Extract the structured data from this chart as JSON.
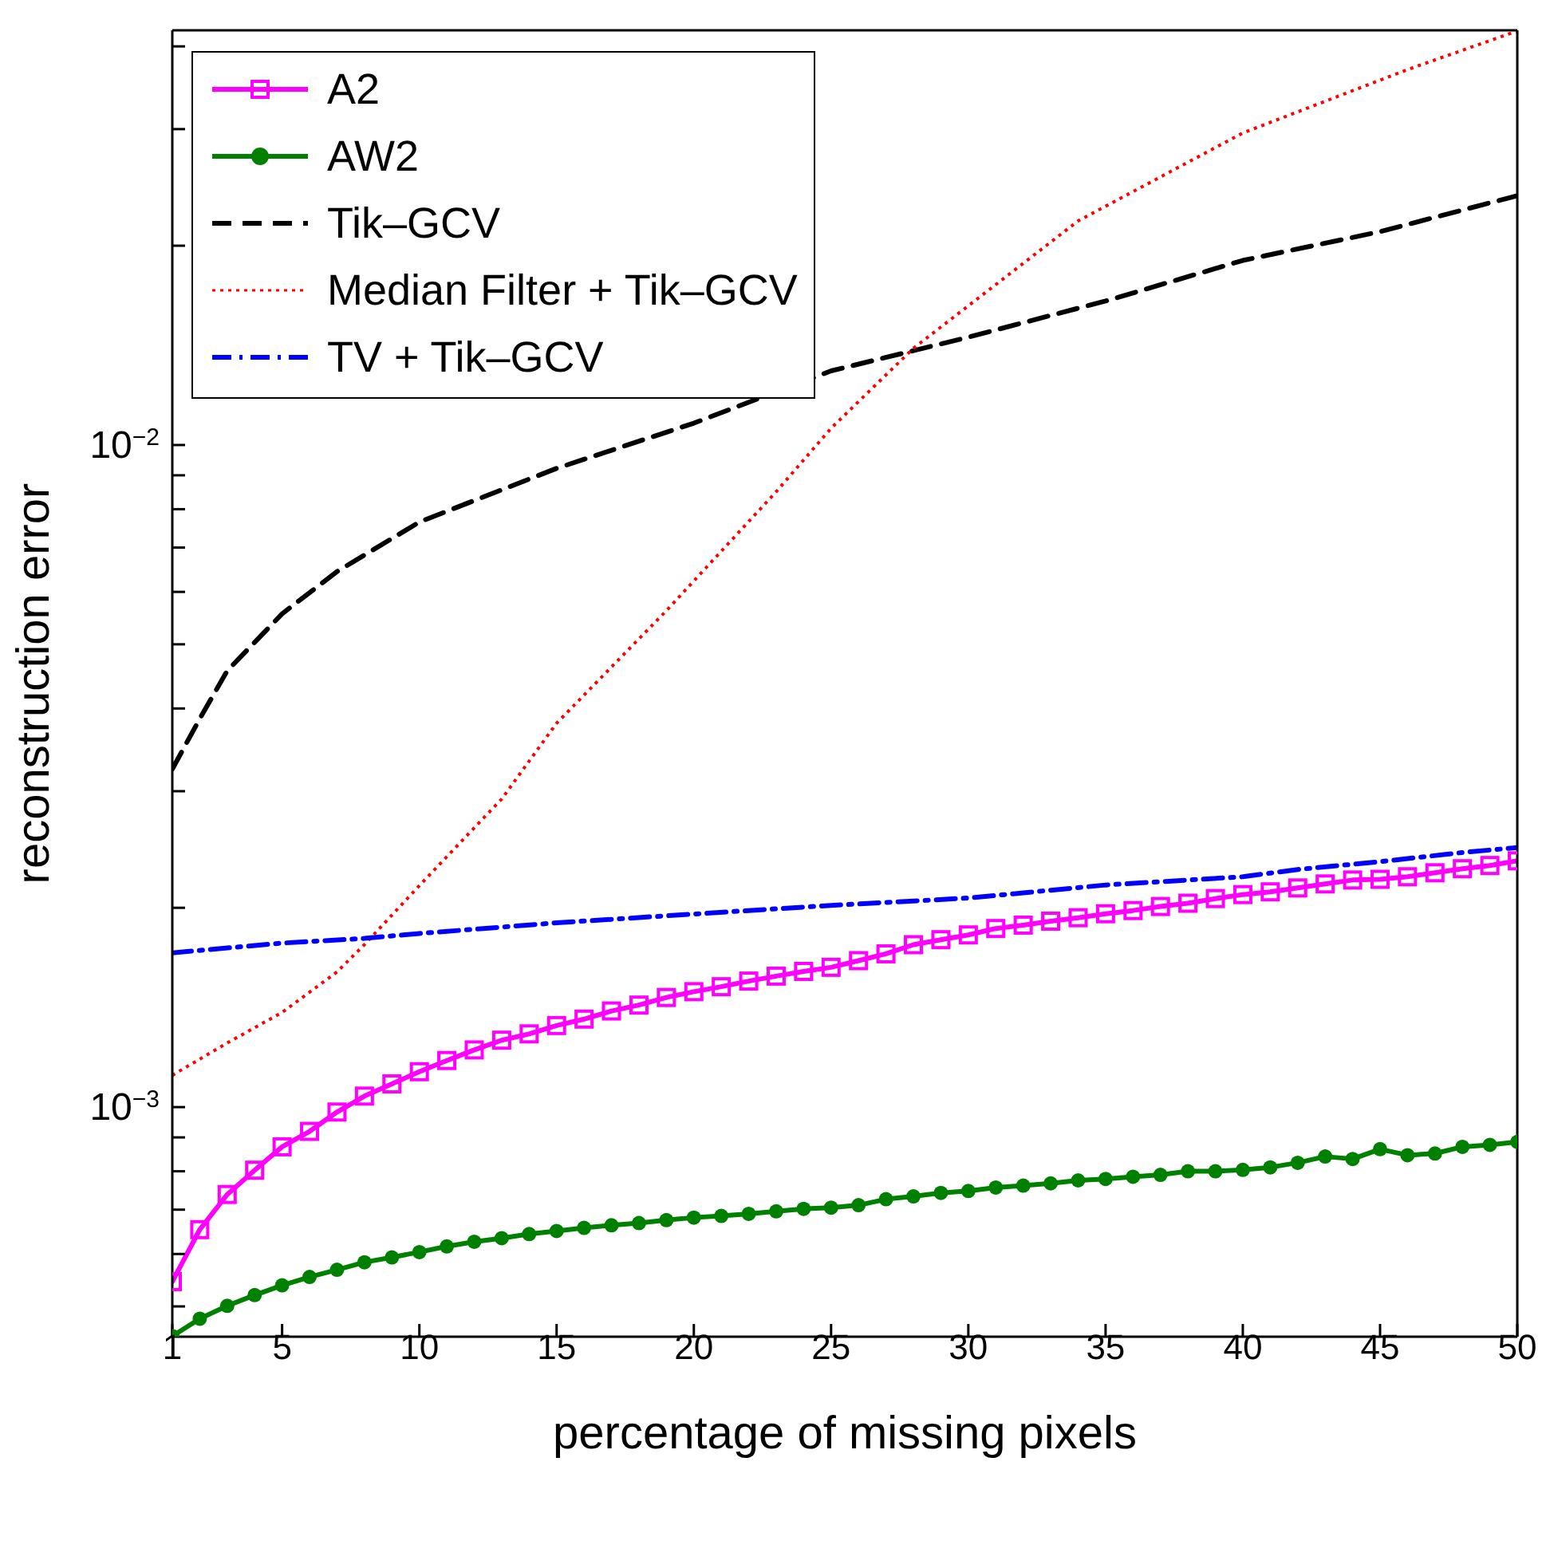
{
  "chart_data": {
    "type": "line",
    "xlabel": "percentage of missing pixels",
    "ylabel": "reconstruction error",
    "log": "y",
    "legend": "top left",
    "xlim": [
      1,
      50
    ],
    "xticks": [
      1,
      5,
      10,
      15,
      20,
      25,
      30,
      35,
      40,
      45,
      50
    ],
    "ylim": [
      0.00045,
      0.0423
    ],
    "yticks": [
      {
        "value": 0.0005,
        "label": null
      },
      {
        "value": 0.0006,
        "label": null
      },
      {
        "value": 0.0007,
        "label": null
      },
      {
        "value": 0.0008,
        "label": null
      },
      {
        "value": 0.0009,
        "label": null
      },
      {
        "value": 0.001,
        "label": "10$^{−3}$"
      },
      {
        "value": 0.002,
        "label": null
      },
      {
        "value": 0.003,
        "label": null
      },
      {
        "value": 0.004,
        "label": null
      },
      {
        "value": 0.005,
        "label": null
      },
      {
        "value": 0.006,
        "label": null
      },
      {
        "value": 0.007,
        "label": null
      },
      {
        "value": 0.008,
        "label": null
      },
      {
        "value": 0.009,
        "label": null
      },
      {
        "value": 0.01,
        "label": "10$^{−2}$"
      },
      {
        "value": 0.02,
        "label": null
      },
      {
        "value": 0.03,
        "label": null
      },
      {
        "value": 0.04,
        "label": null
      }
    ],
    "series": [
      {
        "name": "A2",
        "color": "#ff00ff",
        "marker": "square",
        "line_style": "solid",
        "x": [
          1,
          2,
          3,
          4,
          5,
          6,
          7,
          8,
          9,
          10,
          11,
          12,
          13,
          14,
          15,
          16,
          17,
          18,
          19,
          20,
          21,
          22,
          23,
          24,
          25,
          26,
          27,
          28,
          29,
          30,
          31,
          32,
          33,
          34,
          35,
          36,
          37,
          38,
          39,
          40,
          41,
          42,
          43,
          44,
          45,
          46,
          47,
          48,
          49,
          50
        ],
        "values": [
          0.000545,
          0.000653,
          0.000738,
          0.000803,
          0.000871,
          0.000919,
          0.000983,
          0.001039,
          0.001084,
          0.001131,
          0.001176,
          0.00122,
          0.001262,
          0.00129,
          0.001328,
          0.001358,
          0.001397,
          0.001426,
          0.001464,
          0.001494,
          0.00152,
          0.00155,
          0.001577,
          0.001603,
          0.001626,
          0.001664,
          0.001704,
          0.001759,
          0.00179,
          0.00182,
          0.001861,
          0.001883,
          0.001909,
          0.001932,
          0.001959,
          0.001981,
          0.002009,
          0.002032,
          0.002065,
          0.002094,
          0.002114,
          0.002143,
          0.002173,
          0.002203,
          0.002208,
          0.002228,
          0.002259,
          0.002291,
          0.002317,
          0.002355
        ]
      },
      {
        "name": "AW2",
        "color": "#008000",
        "marker": "circle",
        "line_style": "solid",
        "x": [
          1,
          2,
          3,
          4,
          5,
          6,
          7,
          8,
          9,
          10,
          11,
          12,
          13,
          14,
          15,
          16,
          17,
          18,
          19,
          20,
          21,
          22,
          23,
          24,
          25,
          26,
          27,
          28,
          29,
          30,
          31,
          32,
          33,
          34,
          35,
          36,
          37,
          38,
          39,
          40,
          41,
          42,
          43,
          44,
          45,
          46,
          47,
          48,
          49,
          50
        ],
        "values": [
          0.000451,
          0.000479,
          0.000501,
          0.00052,
          0.000538,
          0.000554,
          0.000568,
          0.000583,
          0.000593,
          0.000604,
          0.000616,
          0.000626,
          0.000634,
          0.000643,
          0.00065,
          0.000657,
          0.000663,
          0.000668,
          0.000675,
          0.000681,
          0.000685,
          0.00069,
          0.000696,
          0.000702,
          0.000705,
          0.000711,
          0.000726,
          0.000733,
          0.000742,
          0.000747,
          0.000756,
          0.000761,
          0.000767,
          0.000775,
          0.000779,
          0.000785,
          0.00079,
          0.0008,
          0.0008,
          0.000804,
          0.000811,
          0.000824,
          0.000842,
          0.000835,
          0.000864,
          0.000846,
          0.000851,
          0.000871,
          0.000877,
          0.000886
        ]
      },
      {
        "name": "Tik–GCV",
        "color": "#000000",
        "marker": "none",
        "line_style": "dashed",
        "x": [
          1,
          2,
          3,
          5,
          7,
          10,
          15,
          20,
          25,
          30,
          35,
          40,
          45,
          50
        ],
        "values": [
          0.00324,
          0.00386,
          0.00456,
          0.00556,
          0.00644,
          0.00765,
          0.00922,
          0.01079,
          0.01294,
          0.01455,
          0.0165,
          0.019,
          0.021,
          0.0238
        ]
      },
      {
        "name": "Median Filter + Tik–GCV",
        "color": "#ff0000",
        "marker": "none",
        "line_style": "dotted",
        "x": [
          1,
          3,
          5,
          7,
          8,
          10,
          13,
          15,
          19,
          23,
          25,
          28,
          34,
          40,
          46,
          50
        ],
        "values": [
          0.001117,
          0.00125,
          0.00139,
          0.0016,
          0.00176,
          0.00216,
          0.00292,
          0.0038,
          0.00562,
          0.0085,
          0.0106,
          0.014,
          0.0218,
          0.0296,
          0.0369,
          0.0422
        ]
      },
      {
        "name": "TV + Tik–GCV",
        "color": "#0000ff",
        "marker": "none",
        "line_style": "dashdot",
        "x": [
          1,
          5,
          8,
          10,
          15,
          20,
          25,
          30,
          35,
          40,
          42,
          45,
          48,
          50
        ],
        "values": [
          0.00171,
          0.001769,
          0.001798,
          0.001829,
          0.001898,
          0.001957,
          0.002017,
          0.002069,
          0.002165,
          0.002228,
          0.002285,
          0.002348,
          0.002424,
          0.002466
        ]
      }
    ]
  }
}
